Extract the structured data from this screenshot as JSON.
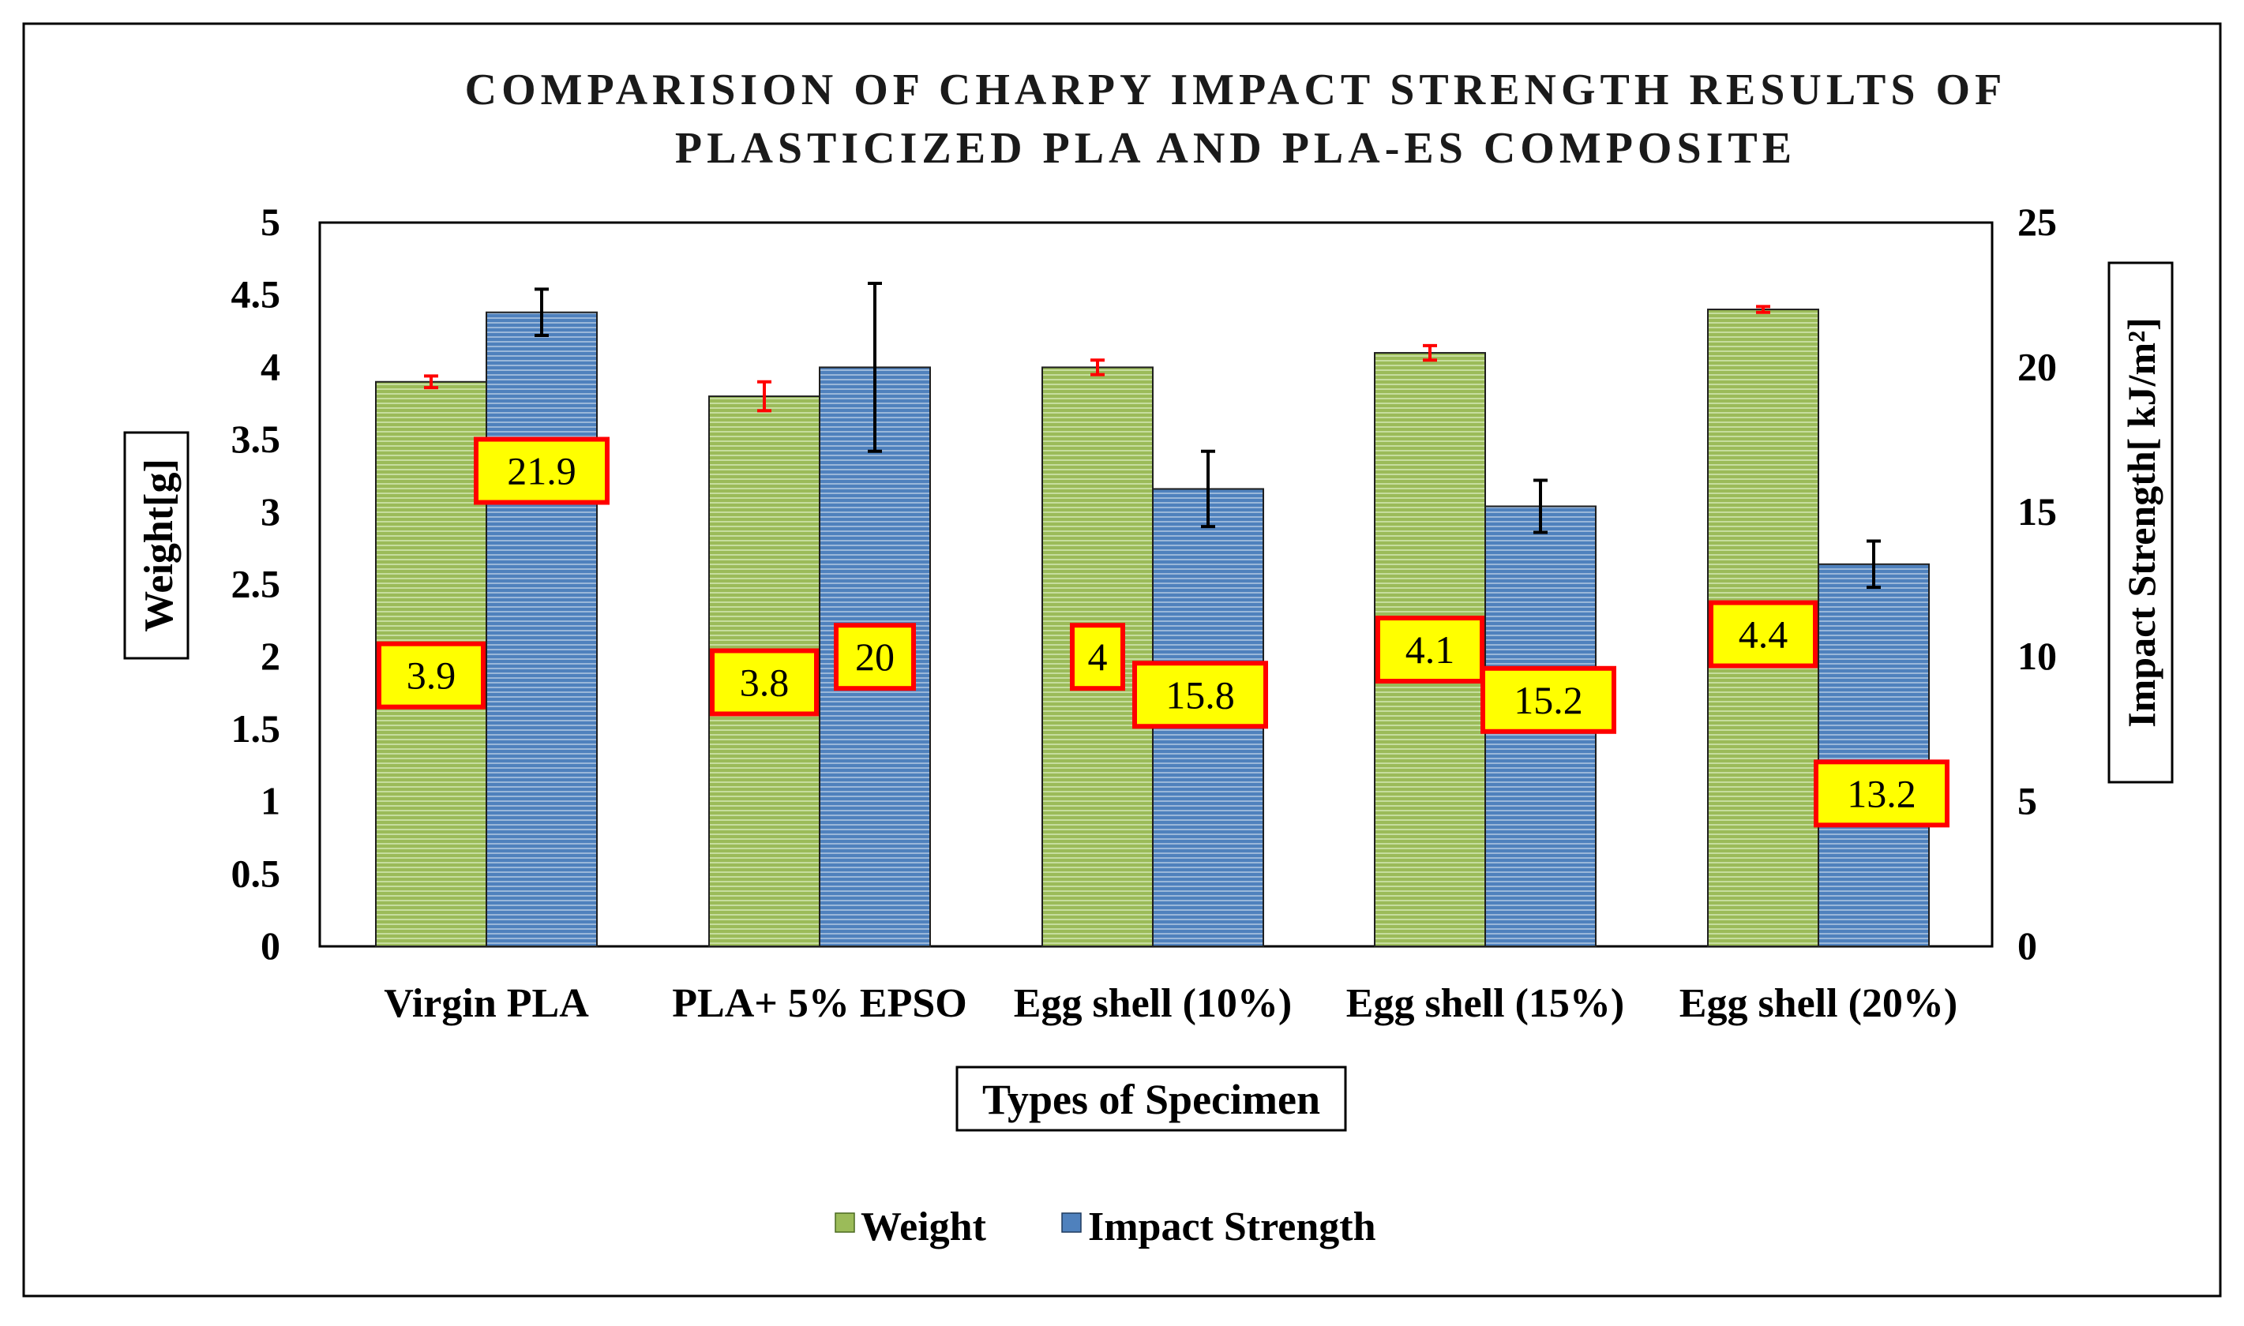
{
  "chart_data": {
    "type": "bar",
    "title_lines": [
      "COMPARISION OF CHARPY IMPACT STRENGTH RESULTS OF",
      "PLASTICIZED PLA AND PLA-ES COMPOSITE"
    ],
    "xlabel": "Types of Specimen",
    "ylabel": "Weight[g]",
    "y2label": "Impact Strength[ kJ/m²]",
    "categories": [
      "Virgin PLA",
      "PLA+ 5% EPSO",
      "Egg shell (10%)",
      "Egg shell (15%)",
      "Egg shell  (20%)"
    ],
    "ylim": [
      0,
      5
    ],
    "y2lim": [
      0,
      25
    ],
    "yticks": [
      "0",
      "0.5",
      "1",
      "1.5",
      "2",
      "2.5",
      "3",
      "3.5",
      "4",
      "4.5",
      "5"
    ],
    "y2ticks": [
      "0",
      "5",
      "10",
      "15",
      "20",
      "25"
    ],
    "series": [
      {
        "name": "Weight",
        "axis": "left",
        "color": "#9bbb59",
        "stripe": "#c6dd9e",
        "values": [
          3.9,
          3.8,
          4.0,
          4.1,
          4.4
        ],
        "labels": [
          "3.9",
          "3.8",
          "4",
          "4.1",
          "4.4"
        ],
        "error": [
          0.04,
          0.1,
          0.05,
          0.05,
          0.02
        ],
        "error_color": "#ff0000"
      },
      {
        "name": "Impact Strength",
        "axis": "right",
        "color": "#4f81bd",
        "stripe": "#9ab7d9",
        "values": [
          21.9,
          20.0,
          15.8,
          15.2,
          13.2
        ],
        "labels": [
          "21.9",
          "20",
          "15.8",
          "15.2",
          "13.2"
        ],
        "error": [
          0.8,
          2.9,
          1.3,
          0.9,
          0.8
        ],
        "error_color": "#000000"
      }
    ],
    "legend": [
      "Weight",
      "Impact Strength"
    ],
    "legend_position": "bottom",
    "label_box": {
      "fill": "#ffff00",
      "border": "#ff0000"
    },
    "grid": false
  }
}
